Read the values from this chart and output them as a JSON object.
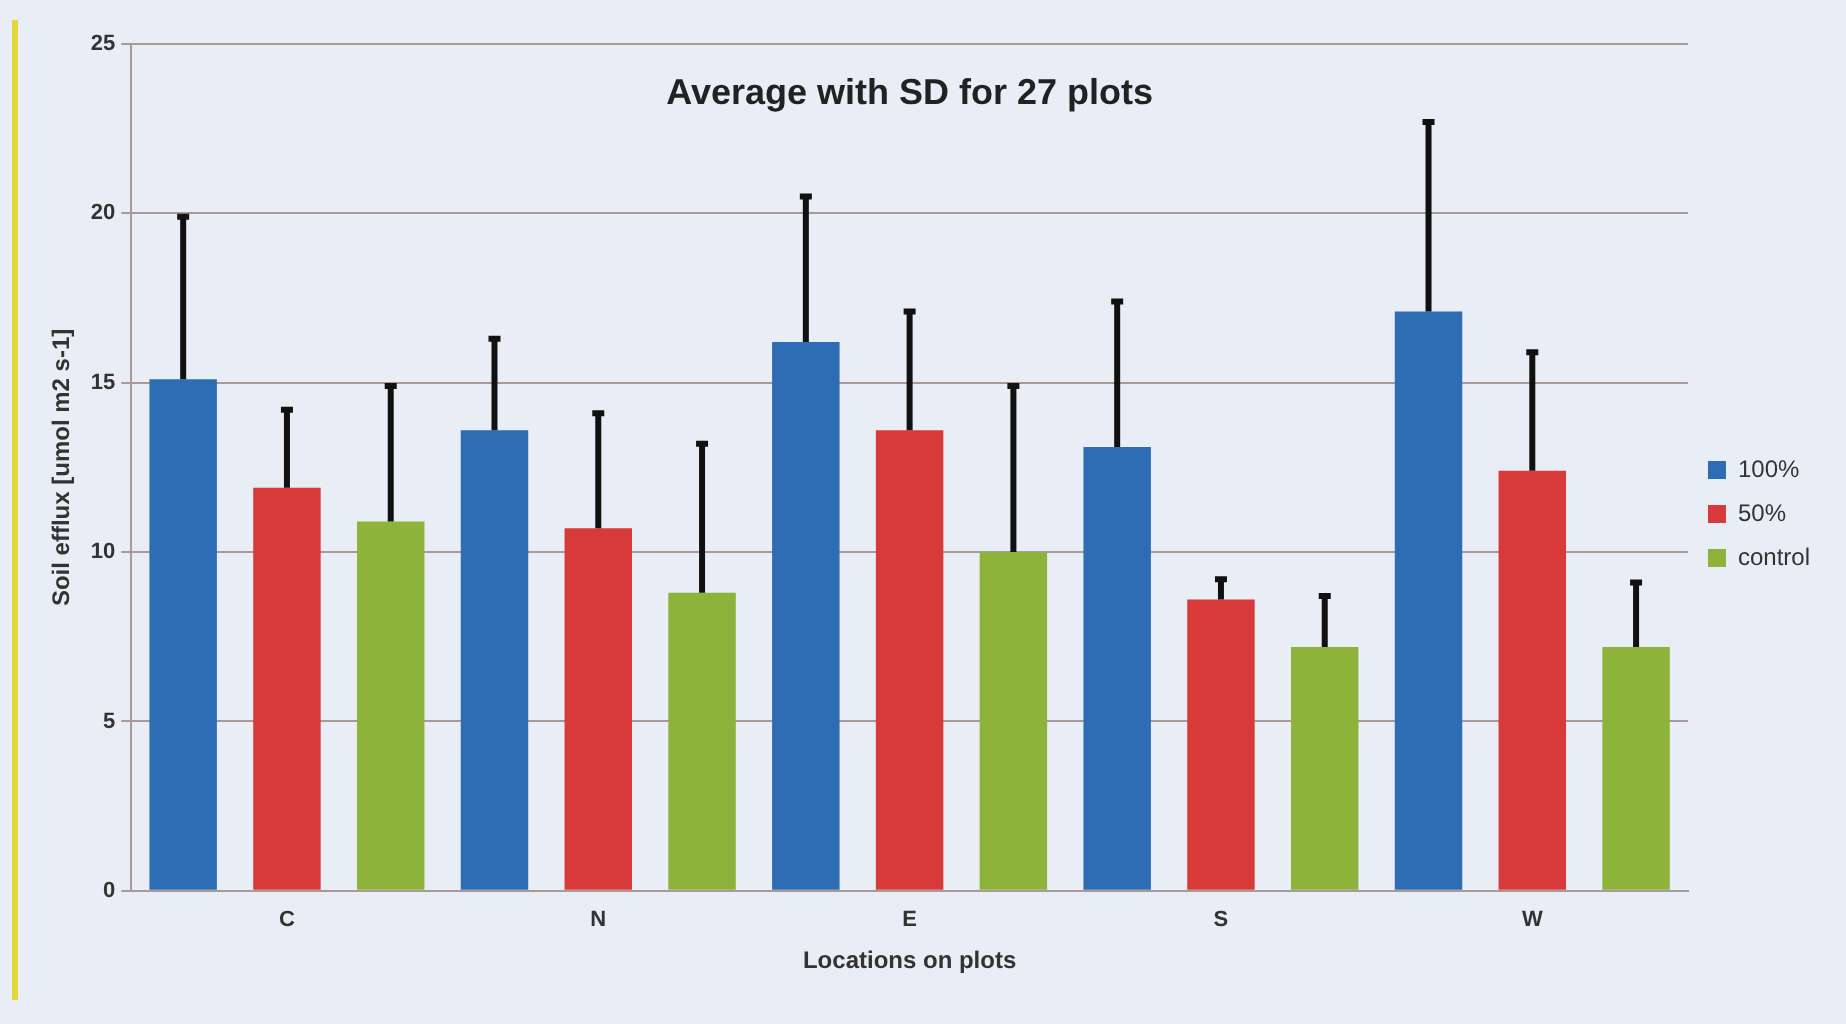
{
  "chart_data": {
    "type": "bar",
    "title": "Average with SD for 27 plots",
    "xlabel": "Locations on plots",
    "ylabel": "Soil efflux [umol m2 s-1]",
    "categories": [
      "C",
      "N",
      "E",
      "S",
      "W"
    ],
    "series": [
      {
        "name": "100%",
        "color": "#2e6db4",
        "values": [
          15.1,
          13.6,
          16.2,
          13.1,
          17.1
        ],
        "errors": [
          [
            15.1,
            19.9
          ],
          [
            13.6,
            16.3
          ],
          [
            16.2,
            20.5
          ],
          [
            13.1,
            17.4
          ],
          [
            17.1,
            22.7
          ]
        ]
      },
      {
        "name": "50%",
        "color": "#d83a3a",
        "values": [
          11.9,
          10.7,
          13.6,
          8.6,
          12.4
        ],
        "errors": [
          [
            11.9,
            14.2
          ],
          [
            10.7,
            14.1
          ],
          [
            13.6,
            17.1
          ],
          [
            8.6,
            9.2
          ],
          [
            12.4,
            15.9
          ]
        ]
      },
      {
        "name": "control",
        "color": "#8db33a",
        "values": [
          10.9,
          8.8,
          10.0,
          7.2,
          7.2
        ],
        "errors": [
          [
            10.9,
            14.9
          ],
          [
            8.8,
            13.2
          ],
          [
            10.0,
            14.9
          ],
          [
            7.2,
            8.7
          ],
          [
            7.2,
            9.1
          ]
        ]
      }
    ],
    "ylim": [
      0,
      25
    ],
    "yticks": [
      0,
      5,
      10,
      15,
      20,
      25
    ],
    "grid": "y",
    "legend": "right"
  }
}
